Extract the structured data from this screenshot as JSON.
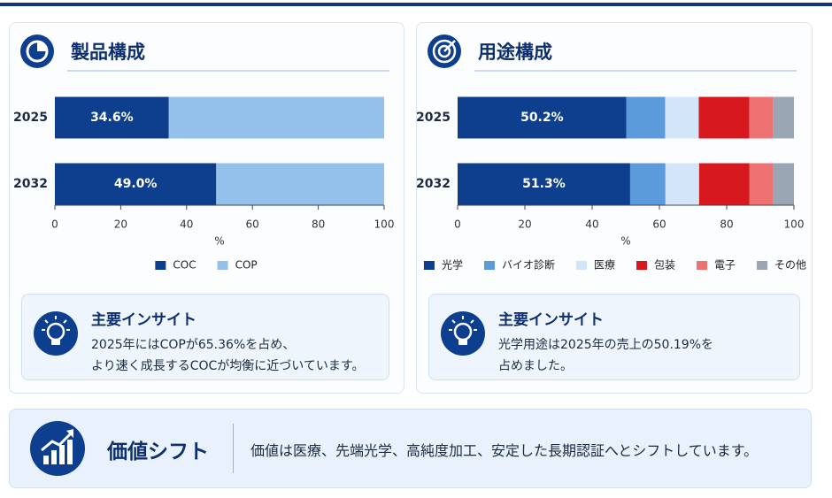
{
  "chart_data": [
    {
      "type": "bar",
      "orientation": "horizontal",
      "stacked": true,
      "title": "製品構成",
      "categories": [
        "2025",
        "2032"
      ],
      "series": [
        {
          "name": "COC",
          "color": "#0e3f8e",
          "values": [
            34.6,
            49.0
          ],
          "value_labels": [
            "34.6%",
            "49.0%"
          ]
        },
        {
          "name": "COP",
          "color": "#93c1ec",
          "values": [
            65.4,
            51.0
          ]
        }
      ],
      "xlim": [
        0,
        100
      ],
      "xticks": [
        0,
        20,
        40,
        60,
        80,
        100
      ],
      "xlabel": "%",
      "legend": "bottom"
    },
    {
      "type": "bar",
      "orientation": "horizontal",
      "stacked": true,
      "title": "用途構成",
      "categories": [
        "2025",
        "2032"
      ],
      "series": [
        {
          "name": "光学",
          "color": "#0e3f8e",
          "values": [
            50.2,
            51.3
          ],
          "value_labels": [
            "50.2%",
            "51.3%"
          ]
        },
        {
          "name": "バイオ診断",
          "color": "#5b9bdc",
          "values": [
            11.5,
            10.5
          ]
        },
        {
          "name": "医療",
          "color": "#d3e5f8",
          "values": [
            10.0,
            10.0
          ]
        },
        {
          "name": "包装",
          "color": "#d7191f",
          "values": [
            15.0,
            15.0
          ]
        },
        {
          "name": "電子",
          "color": "#ef7273",
          "values": [
            7.0,
            7.0
          ]
        },
        {
          "name": "その他",
          "color": "#9ba6b5",
          "values": [
            6.3,
            6.2
          ]
        }
      ],
      "xlim": [
        0,
        100
      ],
      "xticks": [
        0,
        20,
        40,
        60,
        80,
        100
      ],
      "xlabel": "%",
      "legend": "bottom"
    }
  ],
  "insights": [
    {
      "title": "主要インサイト",
      "lines": [
        "2025年にはCOPが65.36%を占め、",
        "より速く成長するCOCが均衡に近づいています。"
      ]
    },
    {
      "title": "主要インサイト",
      "lines": [
        "光学用途は2025年の売上の50.19%を",
        "占めました。"
      ]
    }
  ],
  "banner": {
    "title": "価値シフト",
    "text": "価値は医療、先端光学、高純度加工、安定した長期認証へとシフトしています。"
  }
}
